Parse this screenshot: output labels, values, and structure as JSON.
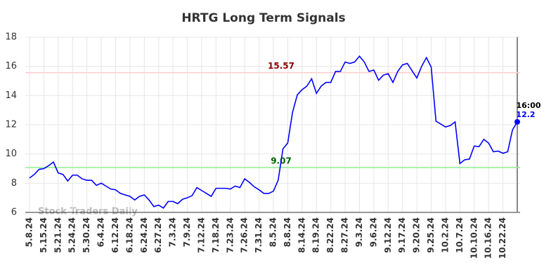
{
  "chart_data": {
    "type": "line",
    "title": "HRTG Long Term Signals",
    "watermark": "Stock Traders Daily",
    "categories": [
      "5.8.24",
      null,
      null,
      "5.15.24",
      null,
      null,
      "5.21.24",
      null,
      null,
      "5.24.24",
      null,
      null,
      "5.30.24",
      null,
      null,
      "6.4.24",
      null,
      null,
      "6.12.24",
      null,
      null,
      "6.18.24",
      null,
      null,
      "6.24.24",
      null,
      null,
      "6.27.24",
      null,
      null,
      "7.3.24",
      null,
      null,
      "7.9.24",
      null,
      null,
      "7.12.24",
      null,
      null,
      "7.18.24",
      null,
      null,
      "7.23.24",
      null,
      null,
      "7.26.24",
      null,
      null,
      "7.31.24",
      null,
      null,
      "8.5.24",
      null,
      null,
      "8.8.24",
      null,
      null,
      "8.14.24",
      null,
      null,
      "8.19.24",
      null,
      null,
      "8.22.24",
      null,
      null,
      "8.27.24",
      null,
      null,
      "9.3.24",
      null,
      null,
      "9.6.24",
      null,
      null,
      "9.12.24",
      null,
      null,
      "9.17.24",
      null,
      null,
      "9.20.24",
      null,
      null,
      "9.25.24",
      null,
      null,
      "10.2.24",
      null,
      null,
      "10.7.24",
      null,
      null,
      "10.10.24",
      null,
      null,
      "10.16.24",
      null,
      null,
      "10.22.24",
      null,
      null,
      null
    ],
    "series": [
      {
        "name": "HRTG",
        "color": "#0000ff",
        "values": [
          8.35,
          8.6,
          8.95,
          9.0,
          9.2,
          9.45,
          8.7,
          8.6,
          8.15,
          8.55,
          8.55,
          8.3,
          8.2,
          8.2,
          7.85,
          8.0,
          7.8,
          7.6,
          7.55,
          7.3,
          7.2,
          7.1,
          6.85,
          7.1,
          7.2,
          6.85,
          6.4,
          6.5,
          6.3,
          6.75,
          6.75,
          6.6,
          6.9,
          7.0,
          7.15,
          7.7,
          7.5,
          7.3,
          7.1,
          7.65,
          7.65,
          7.65,
          7.6,
          7.8,
          7.7,
          8.3,
          8.05,
          7.75,
          7.55,
          7.3,
          7.3,
          7.45,
          8.2,
          10.35,
          10.75,
          12.85,
          14.05,
          14.4,
          14.65,
          15.15,
          14.15,
          14.65,
          14.9,
          14.9,
          15.65,
          15.65,
          16.3,
          16.2,
          16.3,
          16.7,
          16.3,
          15.65,
          15.75,
          15.05,
          15.4,
          15.5,
          14.9,
          15.65,
          16.1,
          16.2,
          15.7,
          15.2,
          16.0,
          16.6,
          15.95,
          12.25,
          12.05,
          11.85,
          11.95,
          12.2,
          9.35,
          9.6,
          9.65,
          10.55,
          10.5,
          11.0,
          10.75,
          10.15,
          10.2,
          10.05,
          10.15,
          11.65,
          12.2
        ]
      }
    ],
    "last_time": "16:00",
    "hlines": [
      {
        "value": 15.57,
        "line_color": "#ffcccc",
        "label_color": "#8b0000"
      },
      {
        "value": 9.07,
        "line_color": "#90ee90",
        "label_color": "#006400"
      }
    ],
    "ylim": [
      6,
      18
    ],
    "yticks": [
      6,
      8,
      10,
      12,
      14,
      16,
      18
    ],
    "grid": true
  }
}
